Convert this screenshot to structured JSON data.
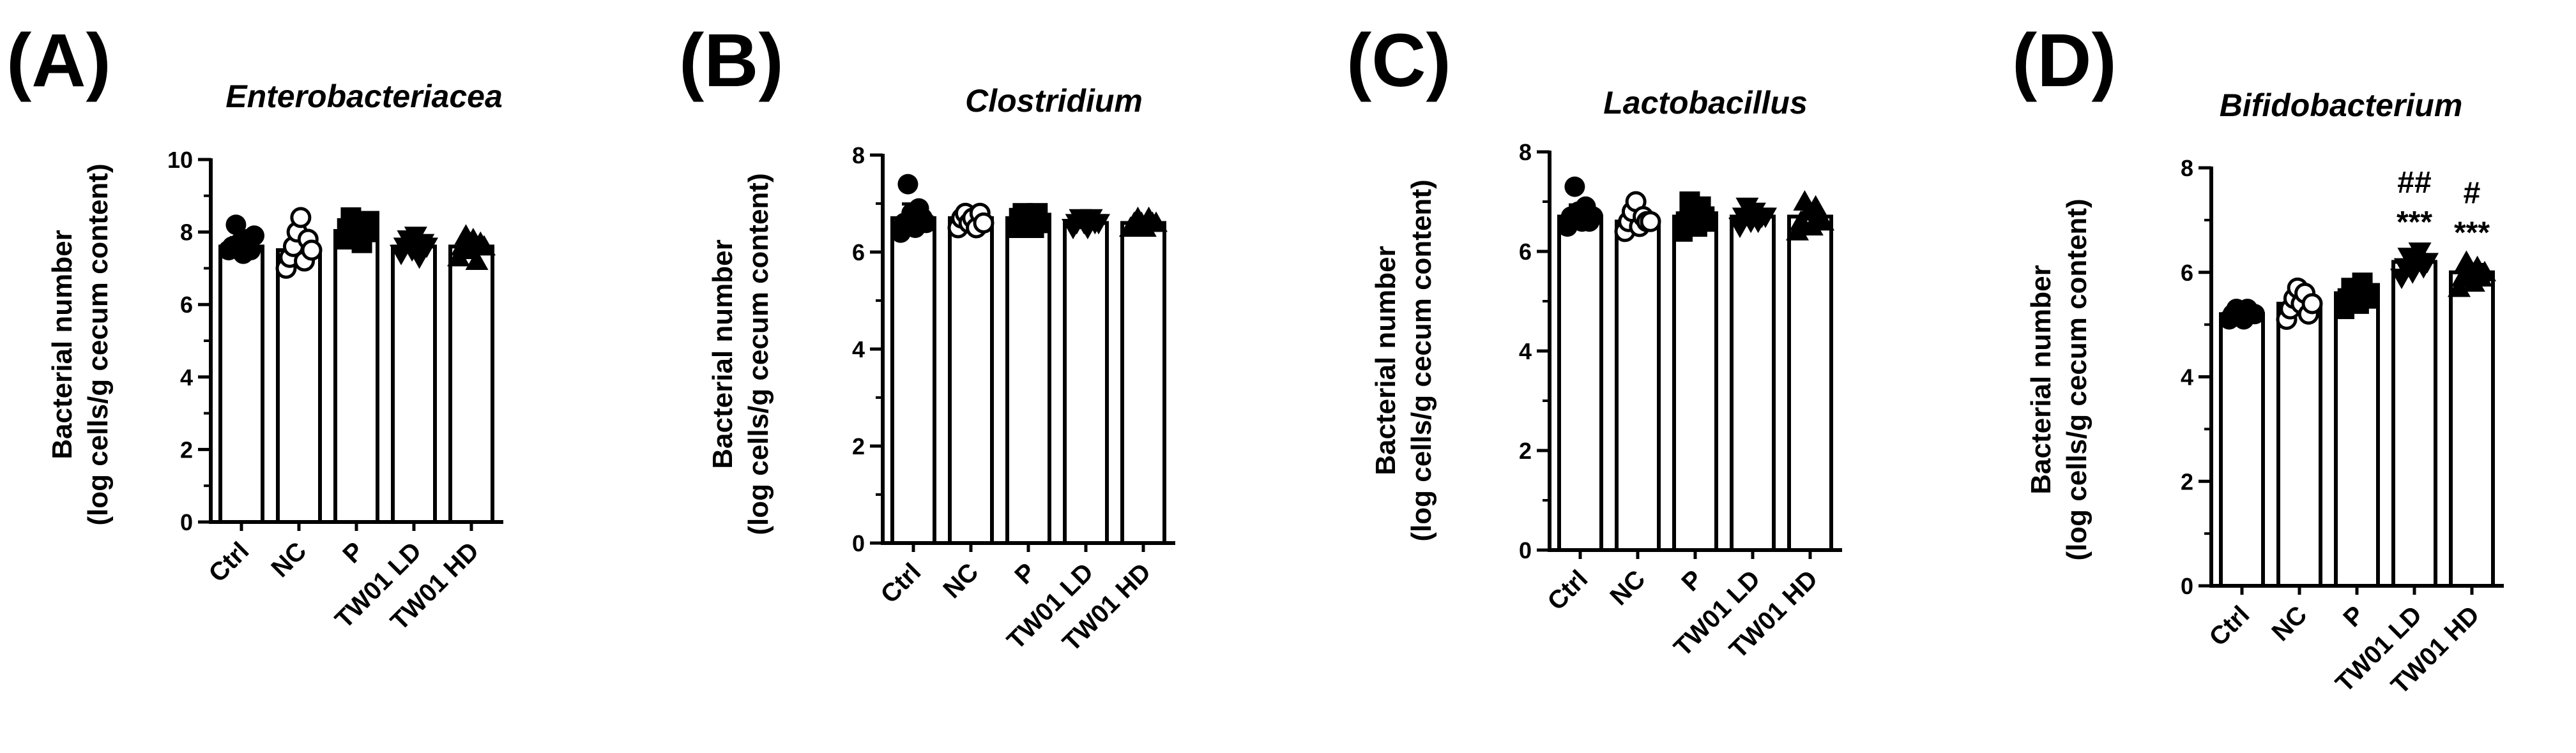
{
  "chart_data": [
    {
      "type": "bar",
      "panel": "(A)",
      "title": "Enterobacteriacea",
      "ylabel": [
        "Bacterial number",
        "(log cells/g cecum content)"
      ],
      "categories": [
        "Ctrl",
        "NC",
        "P",
        "TW01 LD",
        "TW01 HD"
      ],
      "values": [
        7.6,
        7.5,
        8.0,
        7.6,
        7.6
      ],
      "ylim": [
        0,
        10
      ],
      "yticks": [
        0,
        2,
        4,
        6,
        8,
        10
      ],
      "markers": [
        "circle",
        "open-circle",
        "square",
        "down-triangle",
        "triangle"
      ],
      "points": [
        [
          7.5,
          7.6,
          8.2,
          7.7,
          7.4,
          7.8,
          7.5,
          7.9
        ],
        [
          7.0,
          7.3,
          7.6,
          8.0,
          8.4,
          7.2,
          7.8,
          7.5
        ],
        [
          7.8,
          8.1,
          8.4,
          7.9,
          8.2,
          7.7,
          8.0,
          8.3
        ],
        [
          7.4,
          7.6,
          7.8,
          7.5,
          7.9,
          7.3,
          7.7,
          7.6
        ],
        [
          7.3,
          7.6,
          7.9,
          7.5,
          7.8,
          7.2,
          7.7,
          7.6
        ]
      ],
      "annotations": [
        [],
        [],
        [],
        [],
        []
      ]
    },
    {
      "type": "bar",
      "panel": "(B)",
      "title": "Clostridium",
      "ylabel": [
        "Bacterial number",
        "(log cells/g cecum content)"
      ],
      "categories": [
        "Ctrl",
        "NC",
        "P",
        "TW01 LD",
        "TW01 HD"
      ],
      "values": [
        6.7,
        6.7,
        6.7,
        6.6,
        6.6
      ],
      "ylim": [
        0,
        8
      ],
      "yticks": [
        0,
        2,
        4,
        6,
        8
      ],
      "markers": [
        "circle",
        "open-circle",
        "square",
        "down-triangle",
        "triangle"
      ],
      "points": [
        [
          6.4,
          6.6,
          7.4,
          6.8,
          6.5,
          6.9,
          6.7,
          6.6
        ],
        [
          6.5,
          6.7,
          6.8,
          6.6,
          6.7,
          6.5,
          6.8,
          6.6
        ],
        [
          6.5,
          6.7,
          6.8,
          6.6,
          6.7,
          6.5,
          6.8,
          6.6
        ],
        [
          6.5,
          6.6,
          6.7,
          6.6,
          6.5,
          6.7,
          6.6,
          6.6
        ],
        [
          6.5,
          6.6,
          6.7,
          6.6,
          6.5,
          6.7,
          6.6,
          6.6
        ]
      ],
      "annotations": [
        [],
        [],
        [],
        [],
        []
      ]
    },
    {
      "type": "bar",
      "panel": "(C)",
      "title": "Lactobacillus",
      "ylabel": [
        "Bacterial number",
        "(log cells/g cecum content)"
      ],
      "categories": [
        "Ctrl",
        "NC",
        "P",
        "TW01 LD",
        "TW01 HD"
      ],
      "values": [
        6.7,
        6.6,
        6.7,
        6.7,
        6.7
      ],
      "ylim": [
        0,
        8
      ],
      "yticks": [
        0,
        2,
        4,
        6,
        8
      ],
      "markers": [
        "circle",
        "open-circle",
        "square",
        "down-triangle",
        "triangle"
      ],
      "points": [
        [
          6.5,
          6.7,
          7.3,
          6.8,
          6.6,
          6.9,
          6.6,
          6.7
        ],
        [
          6.4,
          6.6,
          6.8,
          7.0,
          6.5,
          6.7,
          6.6,
          6.6
        ],
        [
          6.4,
          6.6,
          7.0,
          6.8,
          6.5,
          6.9,
          6.7,
          6.6
        ],
        [
          6.5,
          6.7,
          6.9,
          6.6,
          6.8,
          6.6,
          6.7,
          6.7
        ],
        [
          6.4,
          6.6,
          7.0,
          6.8,
          6.5,
          6.9,
          6.7,
          6.6
        ]
      ],
      "annotations": [
        [],
        [],
        [],
        [],
        []
      ]
    },
    {
      "type": "bar",
      "panel": "(D)",
      "title": "Bifidobacterium",
      "ylabel": [
        "Bacterial number",
        "(log cells/g cecum content)"
      ],
      "categories": [
        "Ctrl",
        "NC",
        "P",
        "TW01 LD",
        "TW01 HD"
      ],
      "values": [
        5.2,
        5.4,
        5.6,
        6.2,
        6.0
      ],
      "ylim": [
        0,
        8
      ],
      "yticks": [
        0,
        2,
        4,
        6,
        8
      ],
      "markers": [
        "circle",
        "open-circle",
        "square",
        "down-triangle",
        "triangle"
      ],
      "points": [
        [
          5.1,
          5.2,
          5.3,
          5.2,
          5.1,
          5.3,
          5.2,
          5.2
        ],
        [
          5.1,
          5.3,
          5.5,
          5.7,
          5.4,
          5.6,
          5.2,
          5.4
        ],
        [
          5.3,
          5.5,
          5.7,
          5.6,
          5.4,
          5.8,
          5.5,
          5.6
        ],
        [
          5.9,
          6.1,
          6.3,
          6.0,
          6.2,
          6.4,
          6.1,
          6.2
        ],
        [
          5.7,
          5.9,
          6.2,
          6.0,
          5.8,
          6.1,
          5.9,
          6.0
        ]
      ],
      "annotations": [
        [],
        [],
        [],
        [
          "##",
          "***"
        ],
        [
          "#",
          "***"
        ]
      ]
    }
  ]
}
